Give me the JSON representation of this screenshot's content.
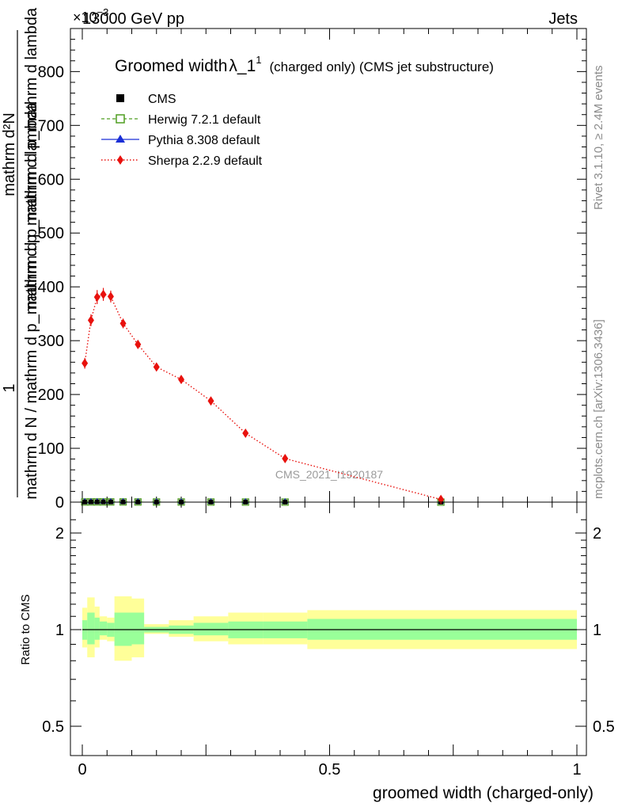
{
  "header": {
    "left": "13000 GeV pp",
    "right": "Jets",
    "exponent_prefix": "×10",
    "exponent_power": "−3"
  },
  "side_text": {
    "rivet": "Rivet 3.1.10, ≥ 2.4M events",
    "mcplots": "mcplots.cern.ch [arXiv:1306.3436]"
  },
  "chart_data": [
    {
      "type": "line",
      "title_main": "Groomed width",
      "title_lambda": "λ_1",
      "title_sup": "1",
      "title_rest": "(charged only) (CMS jet substructure)",
      "ylabel_num": "1",
      "ylabel_den": "mathrm d N / mathrm d p_mathrm d p_mathrm d lambda",
      "ylabel_num2": "mathrm d²N",
      "ylabel_den2": "mathrm d p_mathrm d p_mathrm d lambda",
      "ylim": [
        0,
        880
      ],
      "yticks": [
        0,
        100,
        200,
        300,
        400,
        500,
        600,
        700,
        800
      ],
      "xlim": [
        -0.01,
        1.01
      ],
      "watermark": "CMS_2021_I1920187",
      "legend_position": "top-left",
      "legend": [
        {
          "name": "CMS",
          "color": "#000000",
          "marker": "square-filled",
          "line": "none"
        },
        {
          "name": "Herwig 7.2.1 default",
          "color": "#4f9e20",
          "marker": "square-open",
          "line": "dashed"
        },
        {
          "name": "Pythia 8.308 default",
          "color": "#1a2fd6",
          "marker": "triangle",
          "line": "solid"
        },
        {
          "name": "Sherpa 2.2.9 default",
          "color": "#e8110d",
          "marker": "diamond",
          "line": "dotted"
        }
      ],
      "series": [
        {
          "name": "Sherpa 2.2.9 default",
          "x": [
            0.005,
            0.0175,
            0.03,
            0.0425,
            0.0575,
            0.0825,
            0.1125,
            0.15,
            0.2,
            0.26,
            0.33,
            0.41,
            0.725
          ],
          "y": [
            258,
            338,
            381,
            386,
            382,
            332,
            293,
            251,
            228,
            188,
            128,
            81,
            5
          ],
          "yerr": [
            10,
            11,
            13,
            12,
            11,
            9,
            8,
            7,
            7,
            6,
            5,
            4,
            1
          ]
        },
        {
          "name": "CMS",
          "x": [
            0.005,
            0.0175,
            0.03,
            0.0425,
            0.0575,
            0.0825,
            0.1125,
            0.15,
            0.2,
            0.26,
            0.33,
            0.41,
            0.725
          ],
          "y": [
            0.3,
            0.4,
            0.4,
            0.4,
            0.4,
            0.35,
            0.3,
            0.25,
            0.25,
            0.2,
            0.15,
            0.1,
            0.01
          ]
        }
      ]
    },
    {
      "type": "area",
      "ylabel": "Ratio to CMS",
      "xlabel": "groomed width (charged-only)",
      "ylim": [
        0.38,
        2.35
      ],
      "log_scale_y": true,
      "yticks": [
        0.5,
        1,
        2
      ],
      "ytick_labels": [
        "0.5",
        "1",
        "2"
      ],
      "xticks": [
        0,
        0.5,
        1
      ],
      "xtick_labels": [
        "0",
        "0.5",
        "1"
      ],
      "band_colors": {
        "inner": "#99ff99",
        "outer": "#ffff99"
      },
      "bins": [
        {
          "lo": 0.0,
          "hi": 0.01,
          "in_lo": 0.93,
          "in_hi": 1.07,
          "out_lo": 0.88,
          "out_hi": 1.17
        },
        {
          "lo": 0.01,
          "hi": 0.025,
          "in_lo": 0.9,
          "in_hi": 1.13,
          "out_lo": 0.82,
          "out_hi": 1.26
        },
        {
          "lo": 0.025,
          "hi": 0.035,
          "in_lo": 0.93,
          "in_hi": 1.09,
          "out_lo": 0.88,
          "out_hi": 1.18
        },
        {
          "lo": 0.035,
          "hi": 0.05,
          "in_lo": 0.96,
          "in_hi": 1.06,
          "out_lo": 0.93,
          "out_hi": 1.1
        },
        {
          "lo": 0.05,
          "hi": 0.065,
          "in_lo": 0.95,
          "in_hi": 1.05,
          "out_lo": 0.92,
          "out_hi": 1.09
        },
        {
          "lo": 0.065,
          "hi": 0.1,
          "in_lo": 0.89,
          "in_hi": 1.13,
          "out_lo": 0.8,
          "out_hi": 1.27
        },
        {
          "lo": 0.1,
          "hi": 0.125,
          "in_lo": 0.9,
          "in_hi": 1.13,
          "out_lo": 0.82,
          "out_hi": 1.25
        },
        {
          "lo": 0.125,
          "hi": 0.175,
          "in_lo": 0.98,
          "in_hi": 1.02,
          "out_lo": 0.97,
          "out_hi": 1.04
        },
        {
          "lo": 0.175,
          "hi": 0.225,
          "in_lo": 0.97,
          "in_hi": 1.03,
          "out_lo": 0.95,
          "out_hi": 1.07
        },
        {
          "lo": 0.225,
          "hi": 0.295,
          "in_lo": 0.96,
          "in_hi": 1.05,
          "out_lo": 0.92,
          "out_hi": 1.1
        },
        {
          "lo": 0.295,
          "hi": 0.365,
          "in_lo": 0.94,
          "in_hi": 1.06,
          "out_lo": 0.9,
          "out_hi": 1.13
        },
        {
          "lo": 0.365,
          "hi": 0.455,
          "in_lo": 0.94,
          "in_hi": 1.06,
          "out_lo": 0.9,
          "out_hi": 1.13
        },
        {
          "lo": 0.455,
          "hi": 1.0,
          "in_lo": 0.93,
          "in_hi": 1.08,
          "out_lo": 0.87,
          "out_hi": 1.15
        }
      ]
    }
  ]
}
